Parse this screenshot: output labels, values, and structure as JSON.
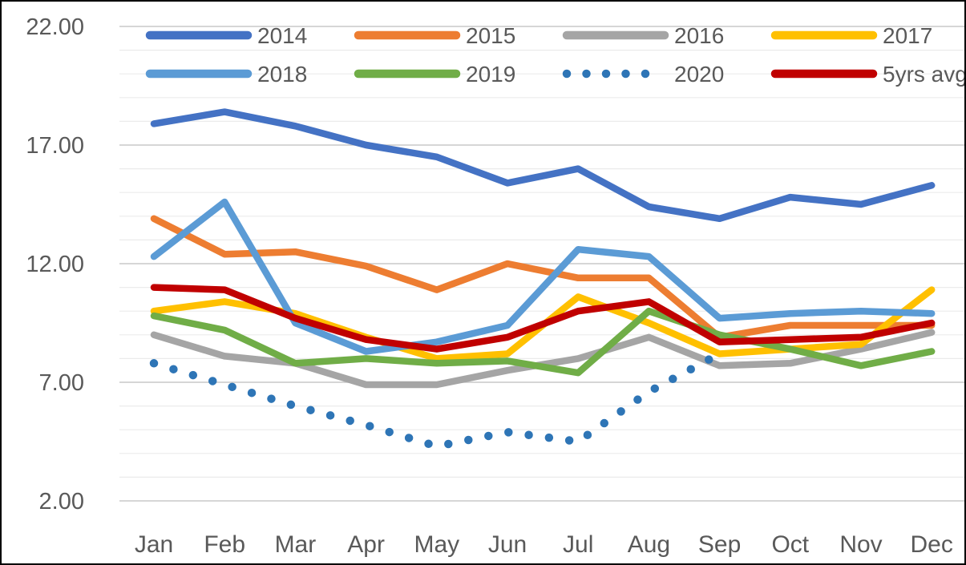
{
  "chart_data": {
    "type": "line",
    "title": "",
    "xlabel": "",
    "ylabel": "",
    "categories": [
      "Jan",
      "Feb",
      "Mar",
      "Apr",
      "May",
      "Jun",
      "Jul",
      "Aug",
      "Sep",
      "Oct",
      "Nov",
      "Dec"
    ],
    "y_axis": {
      "min": 2,
      "max": 22,
      "major_step": 5,
      "minor_step": 1,
      "tick_labels": [
        "22.00",
        "17.00",
        "12.00",
        "7.00",
        "2.00"
      ],
      "tick_values": [
        22,
        17,
        12,
        7,
        2
      ]
    },
    "grid": true,
    "legend_position": "top",
    "legend_rows": [
      [
        "2014",
        "2015",
        "2016",
        "2017"
      ],
      [
        "2018",
        "2019",
        "2020",
        "5yrs avg"
      ]
    ],
    "series": [
      {
        "name": "2014",
        "color": "#4472C4",
        "style": "solid",
        "values": [
          17.9,
          18.4,
          17.8,
          17.0,
          16.5,
          15.4,
          16.0,
          14.4,
          13.9,
          14.8,
          14.5,
          15.3
        ]
      },
      {
        "name": "2015",
        "color": "#ED7D31",
        "style": "solid",
        "values": [
          13.9,
          12.4,
          12.5,
          11.9,
          10.9,
          12.0,
          11.4,
          11.4,
          8.9,
          9.4,
          9.4,
          9.4
        ]
      },
      {
        "name": "2016",
        "color": "#A5A5A5",
        "style": "solid",
        "values": [
          9.0,
          8.1,
          7.8,
          6.9,
          6.9,
          7.5,
          8.0,
          8.9,
          7.7,
          7.8,
          8.4,
          9.1
        ]
      },
      {
        "name": "2017",
        "color": "#FFC000",
        "style": "solid",
        "values": [
          10.0,
          10.4,
          9.9,
          8.9,
          8.0,
          8.2,
          10.6,
          9.5,
          8.2,
          8.4,
          8.6,
          10.9
        ]
      },
      {
        "name": "2018",
        "color": "#5B9BD5",
        "style": "solid",
        "values": [
          12.3,
          14.6,
          9.5,
          8.3,
          8.7,
          9.4,
          12.6,
          12.3,
          9.7,
          9.9,
          10.0,
          9.9
        ]
      },
      {
        "name": "2019",
        "color": "#70AD47",
        "style": "solid",
        "values": [
          9.8,
          9.2,
          7.8,
          8.0,
          7.8,
          7.9,
          7.4,
          10.0,
          9.0,
          8.4,
          7.7,
          8.3
        ]
      },
      {
        "name": "2020",
        "color": "#2E75B6",
        "style": "dotted",
        "values": [
          7.8,
          6.9,
          6.0,
          5.2,
          4.3,
          4.9,
          4.5,
          6.6,
          8.2,
          null,
          null,
          null
        ]
      },
      {
        "name": "5yrs avg",
        "color": "#C00000",
        "style": "solid",
        "values": [
          11.0,
          10.9,
          9.7,
          8.8,
          8.4,
          8.9,
          10.0,
          10.4,
          8.7,
          8.8,
          8.9,
          9.5
        ]
      }
    ],
    "colors": {
      "axis_text": "#595959",
      "grid_minor": "#EBEBEB",
      "grid_major": "#C8C8C8",
      "background": "#FFFFFF",
      "frame_border": "#000000"
    }
  }
}
